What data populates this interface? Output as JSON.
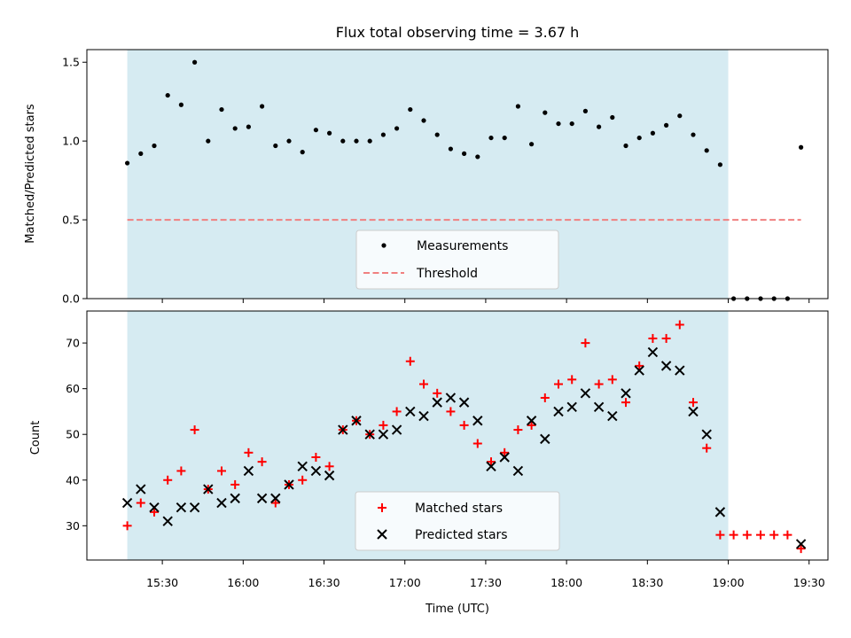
{
  "chart_data": [
    {
      "type": "scatter",
      "title": "Flux total observing time = 3.67 h",
      "xlabel": "",
      "ylabel": "Matched/Predicted stars",
      "ylim": [
        0.0,
        1.58
      ],
      "yticks": [
        "0.0",
        "0.5",
        "1.0",
        "1.5"
      ],
      "threshold": 0.5,
      "observing_window": [
        "15:17",
        "19:00"
      ],
      "grid": false,
      "legend_position": "lower center",
      "colors": {
        "measurements": "#000000",
        "threshold": "#f08080",
        "shade": "#add8e6"
      },
      "series": [
        {
          "name": "Measurements",
          "x": [
            "15:17",
            "15:22",
            "15:27",
            "15:32",
            "15:37",
            "15:42",
            "15:47",
            "15:52",
            "15:57",
            "16:02",
            "16:07",
            "16:12",
            "16:17",
            "16:22",
            "16:27",
            "16:32",
            "16:37",
            "16:42",
            "16:47",
            "16:52",
            "16:57",
            "17:02",
            "17:07",
            "17:12",
            "17:17",
            "17:22",
            "17:27",
            "17:32",
            "17:37",
            "17:42",
            "17:47",
            "17:52",
            "17:57",
            "18:02",
            "18:07",
            "18:12",
            "18:17",
            "18:22",
            "18:27",
            "18:32",
            "18:37",
            "18:42",
            "18:47",
            "18:52",
            "18:57",
            "19:02",
            "19:07",
            "19:12",
            "19:17",
            "19:22",
            "19:27"
          ],
          "values": [
            0.86,
            0.92,
            0.97,
            1.29,
            1.23,
            1.5,
            1.0,
            1.2,
            1.08,
            1.09,
            1.22,
            0.97,
            1.0,
            0.93,
            1.07,
            1.05,
            1.0,
            1.0,
            1.0,
            1.04,
            1.08,
            1.2,
            1.13,
            1.04,
            0.95,
            0.92,
            0.9,
            1.02,
            1.02,
            1.22,
            0.98,
            1.18,
            1.11,
            1.11,
            1.19,
            1.09,
            1.15,
            0.97,
            1.02,
            1.05,
            1.1,
            1.16,
            1.04,
            0.94,
            0.85,
            0.0,
            0.0,
            0.0,
            0.0,
            0.0,
            0.96
          ]
        },
        {
          "name": "Threshold",
          "x": [
            "15:17",
            "19:27"
          ],
          "values": [
            0.5,
            0.5
          ]
        }
      ]
    },
    {
      "type": "scatter",
      "title": "",
      "xlabel": "Time (UTC)",
      "ylabel": "Count",
      "ylim": [
        22.5,
        77
      ],
      "yticks": [
        "30",
        "40",
        "50",
        "60",
        "70"
      ],
      "xticks": [
        "15:30",
        "16:00",
        "16:30",
        "17:00",
        "17:30",
        "18:00",
        "18:30",
        "19:00",
        "19:30"
      ],
      "observing_window": [
        "15:17",
        "19:00"
      ],
      "grid": false,
      "legend_position": "lower center",
      "colors": {
        "matched": "#ff0000",
        "predicted": "#000000",
        "shade": "#add8e6"
      },
      "x": [
        "15:17",
        "15:22",
        "15:27",
        "15:32",
        "15:37",
        "15:42",
        "15:47",
        "15:52",
        "15:57",
        "16:02",
        "16:07",
        "16:12",
        "16:17",
        "16:22",
        "16:27",
        "16:32",
        "16:37",
        "16:42",
        "16:47",
        "16:52",
        "16:57",
        "17:02",
        "17:07",
        "17:12",
        "17:17",
        "17:22",
        "17:27",
        "17:32",
        "17:37",
        "17:42",
        "17:47",
        "17:52",
        "17:57",
        "18:02",
        "18:07",
        "18:12",
        "18:17",
        "18:22",
        "18:27",
        "18:32",
        "18:37",
        "18:42",
        "18:47",
        "18:52",
        "18:57",
        "19:02",
        "19:07",
        "19:12",
        "19:17",
        "19:22",
        "19:27"
      ],
      "series": [
        {
          "name": "Matched stars",
          "values": [
            30,
            35,
            33,
            40,
            42,
            51,
            38,
            42,
            39,
            46,
            44,
            35,
            39,
            40,
            45,
            43,
            51,
            53,
            50,
            52,
            55,
            66,
            61,
            59,
            55,
            52,
            48,
            44,
            46,
            51,
            52,
            58,
            61,
            62,
            70,
            61,
            62,
            57,
            65,
            71,
            71,
            74,
            57,
            47,
            28,
            28,
            28,
            28,
            28,
            28,
            25
          ]
        },
        {
          "name": "Predicted stars",
          "values": [
            35,
            38,
            34,
            31,
            34,
            34,
            38,
            35,
            36,
            42,
            36,
            36,
            39,
            43,
            42,
            41,
            51,
            53,
            50,
            50,
            51,
            55,
            54,
            57,
            58,
            57,
            53,
            43,
            45,
            42,
            53,
            49,
            55,
            56,
            59,
            56,
            54,
            59,
            64,
            68,
            65,
            64,
            55,
            50,
            33,
            null,
            null,
            null,
            null,
            null,
            26
          ]
        }
      ]
    }
  ]
}
